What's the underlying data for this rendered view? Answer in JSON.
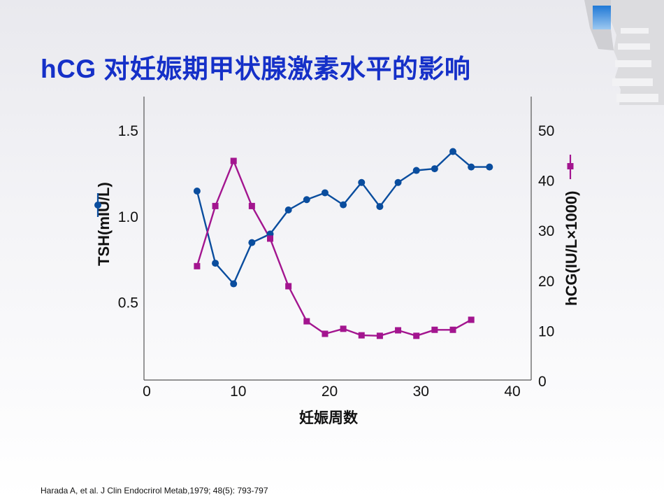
{
  "slide": {
    "title": "hCG 对妊娠期甲状腺激素水平的影响",
    "citation": "Harada A, et al.  J Clin Endocrirol Metab,1979; 48(5): 793-797"
  },
  "chart_data": {
    "type": "line",
    "title": "",
    "xlabel": "妊娠周数",
    "xlim": [
      0,
      40
    ],
    "x_ticks": [
      "0",
      "10",
      "20",
      "30",
      "40"
    ],
    "ylabel_left": "TSH(mIU/L)",
    "ylim_left": [
      0.05,
      1.7
    ],
    "y_ticks_left": [
      "0.5",
      "1.0",
      "1.5"
    ],
    "ylabel_right": "hCG(IU/L×1000)",
    "ylim_right": [
      0,
      55
    ],
    "y_ticks_right": [
      "0",
      "10",
      "20",
      "30",
      "40",
      "50"
    ],
    "grid": false,
    "legend": "axis-titles",
    "series": [
      {
        "name": "TSH(mIU/L)",
        "axis": "left",
        "marker": "circle",
        "color": "#0a4d9e",
        "x": [
          5.5,
          7.5,
          9.5,
          11.5,
          13.5,
          15.5,
          17.5,
          19.5,
          21.5,
          23.5,
          25.5,
          27.5,
          29.5,
          31.5,
          33.5,
          35.5,
          37.5
        ],
        "y": [
          1.15,
          0.73,
          0.61,
          0.85,
          0.9,
          1.04,
          1.1,
          1.14,
          1.07,
          1.2,
          1.06,
          1.2,
          1.27,
          1.28,
          1.38,
          1.29,
          1.29
        ]
      },
      {
        "name": "hCG(IU/L×1000)",
        "axis": "right",
        "marker": "square",
        "color": "#a3158f",
        "x": [
          5.5,
          7.5,
          9.5,
          11.5,
          13.5,
          15.5,
          17.5,
          19.5,
          21.5,
          23.5,
          25.5,
          27.5,
          29.5,
          31.5,
          33.5,
          35.5
        ],
        "y": [
          23,
          35,
          44,
          35,
          28.5,
          19,
          12,
          9.5,
          10.5,
          9.2,
          9.1,
          10.2,
          9.1,
          10.3,
          10.3,
          12.3
        ]
      }
    ]
  }
}
